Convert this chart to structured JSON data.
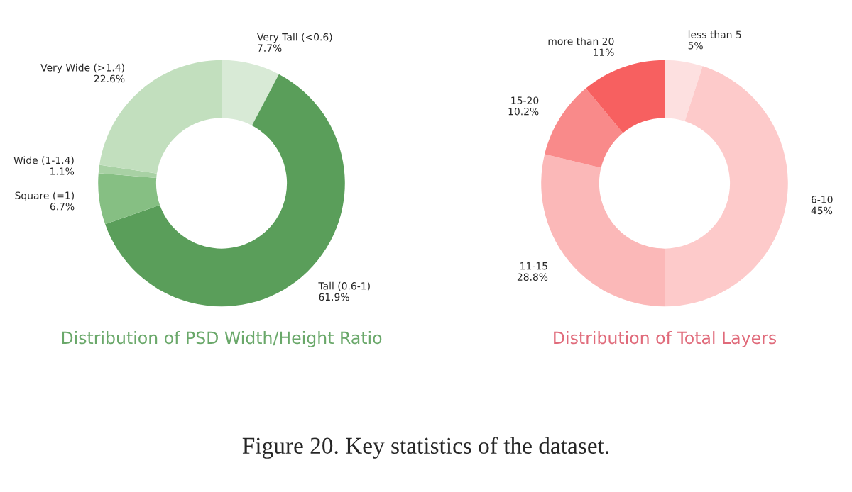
{
  "chart_data": [
    {
      "type": "donut",
      "title": "Distribution of PSD Width/Height Ratio",
      "categories": [
        "Very Tall (<0.6)",
        "Tall (0.6-1)",
        "Square (=1)",
        "Wide (1-1.4)",
        "Very Wide (>1.4)"
      ],
      "values": [
        7.7,
        61.9,
        6.7,
        1.1,
        22.6
      ],
      "colors": [
        "#d8ead6",
        "#5a9e5a",
        "#86bf83",
        "#a8d1a4",
        "#c2dfbe"
      ],
      "value_labels": [
        "7.7%",
        "61.9%",
        "6.7%",
        "1.1%",
        "22.6%"
      ],
      "annotations": [
        "Figure 20. Key statistics of the dataset."
      ]
    },
    {
      "type": "donut",
      "title": "Distribution of Total Layers",
      "categories": [
        "less than 5",
        "6-10",
        "11-15",
        "15-20",
        "more than 20"
      ],
      "values": [
        5,
        45,
        28.8,
        10.2,
        11
      ],
      "colors": [
        "#fde0e0",
        "#fdcaca",
        "#fbb8b8",
        "#f98a8a",
        "#f76060"
      ],
      "value_labels": [
        "5%",
        "45%",
        "28.8%",
        "10.2%",
        "11%"
      ]
    }
  ]
}
